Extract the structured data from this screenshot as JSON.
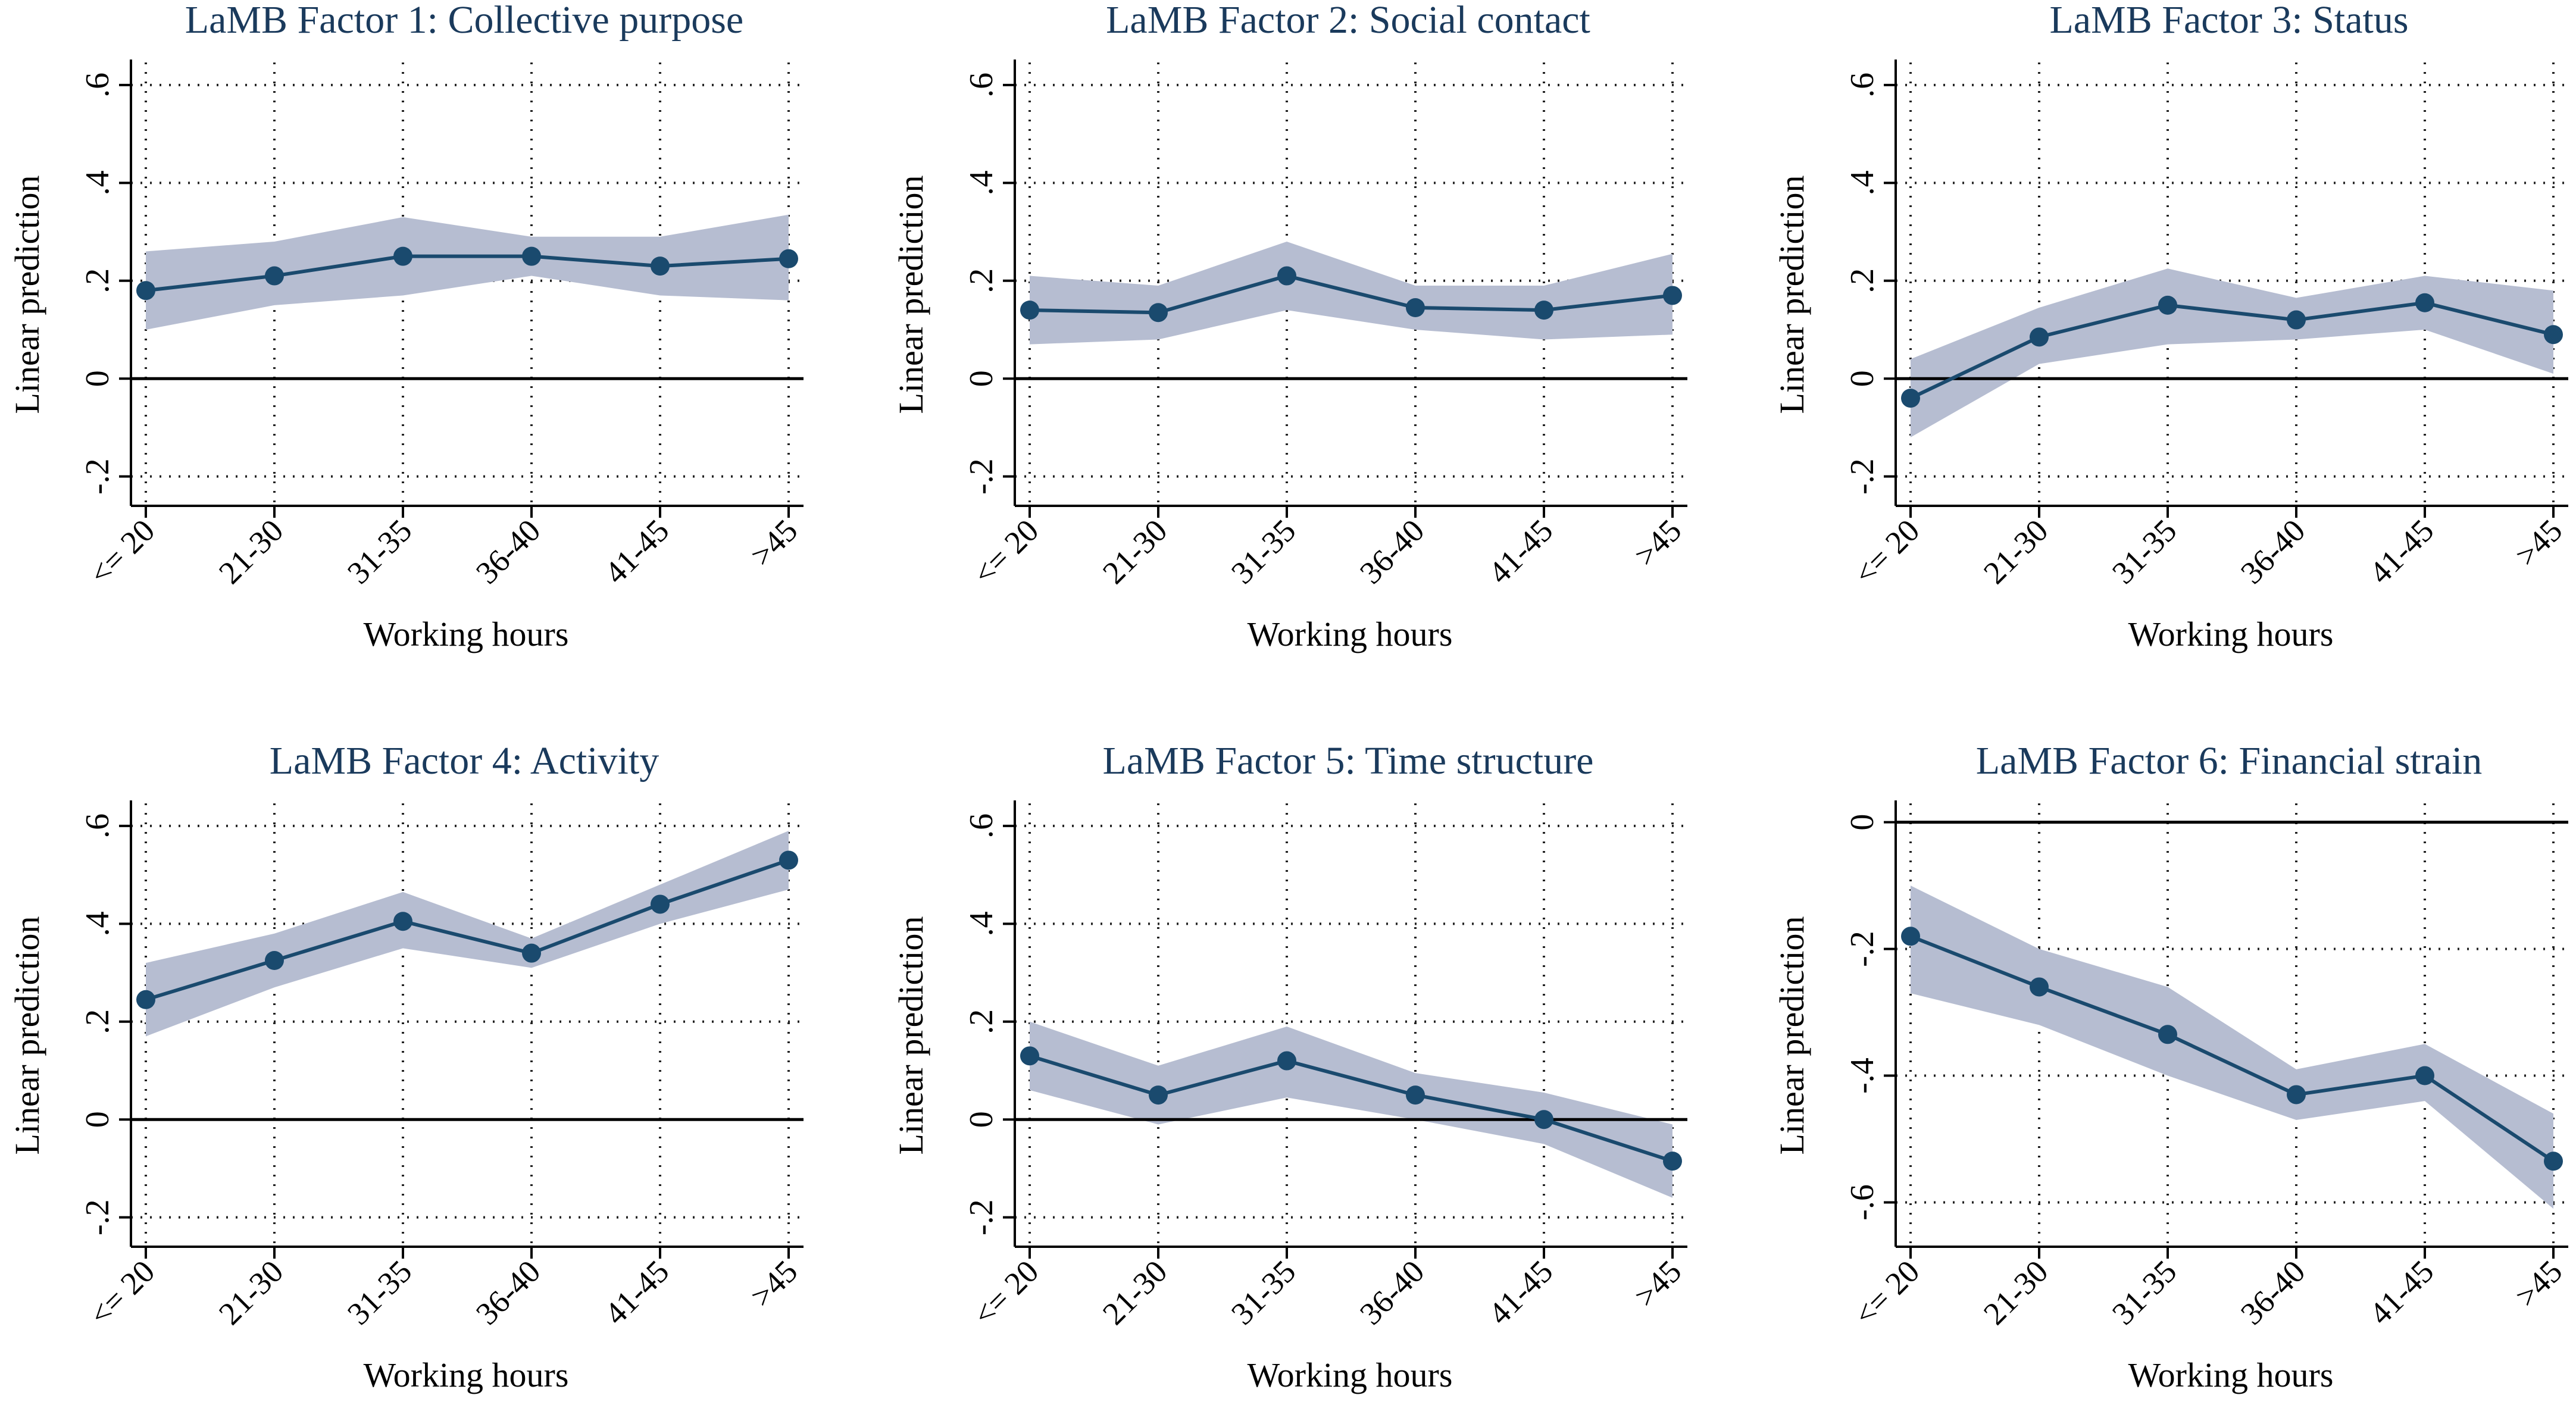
{
  "chart_data": [
    {
      "type": "line",
      "title": "LaMB Factor 1: Collective purpose",
      "xlabel": "Working hours",
      "ylabel": "Linear prediction",
      "categories": [
        "<= 20",
        "21-30",
        "31-35",
        "36-40",
        "41-45",
        ">45"
      ],
      "yticks": [
        -0.2,
        0,
        0.2,
        0.4,
        0.6
      ],
      "ytick_labels": [
        "-.2",
        "0",
        ".2",
        ".4",
        ".6"
      ],
      "ylim": [
        -0.26,
        0.64
      ],
      "reference_line": 0,
      "values": [
        0.18,
        0.21,
        0.25,
        0.25,
        0.23,
        0.245
      ],
      "ci_lower": [
        0.1,
        0.15,
        0.17,
        0.21,
        0.17,
        0.16
      ],
      "ci_upper": [
        0.26,
        0.28,
        0.33,
        0.29,
        0.29,
        0.335
      ],
      "line_color": "#1a4a6e",
      "band_color": "#b6bdd1"
    },
    {
      "type": "line",
      "title": "LaMB Factor 2: Social contact",
      "xlabel": "Working hours",
      "ylabel": "Linear prediction",
      "categories": [
        "<= 20",
        "21-30",
        "31-35",
        "36-40",
        "41-45",
        ">45"
      ],
      "yticks": [
        -0.2,
        0,
        0.2,
        0.4,
        0.6
      ],
      "ytick_labels": [
        "-.2",
        "0",
        ".2",
        ".4",
        ".6"
      ],
      "ylim": [
        -0.26,
        0.64
      ],
      "reference_line": 0,
      "values": [
        0.14,
        0.135,
        0.21,
        0.145,
        0.14,
        0.17
      ],
      "ci_lower": [
        0.07,
        0.08,
        0.14,
        0.1,
        0.08,
        0.09
      ],
      "ci_upper": [
        0.21,
        0.19,
        0.28,
        0.19,
        0.19,
        0.255
      ],
      "line_color": "#1a4a6e",
      "band_color": "#b6bdd1"
    },
    {
      "type": "line",
      "title": "LaMB Factor 3: Status",
      "xlabel": "Working hours",
      "ylabel": "Linear prediction",
      "categories": [
        "<= 20",
        "21-30",
        "31-35",
        "36-40",
        "41-45",
        ">45"
      ],
      "yticks": [
        -0.2,
        0,
        0.2,
        0.4,
        0.6
      ],
      "ytick_labels": [
        "-.2",
        "0",
        ".2",
        ".4",
        ".6"
      ],
      "ylim": [
        -0.26,
        0.64
      ],
      "reference_line": 0,
      "values": [
        -0.04,
        0.085,
        0.15,
        0.12,
        0.155,
        0.09
      ],
      "ci_lower": [
        -0.12,
        0.03,
        0.07,
        0.08,
        0.1,
        0.01
      ],
      "ci_upper": [
        0.04,
        0.145,
        0.225,
        0.165,
        0.21,
        0.18
      ],
      "line_color": "#1a4a6e",
      "band_color": "#b6bdd1"
    },
    {
      "type": "line",
      "title": "LaMB Factor 4: Activity",
      "xlabel": "Working hours",
      "ylabel": "Linear prediction",
      "categories": [
        "<= 20",
        "21-30",
        "31-35",
        "36-40",
        "41-45",
        ">45"
      ],
      "yticks": [
        -0.2,
        0,
        0.2,
        0.4,
        0.6
      ],
      "ytick_labels": [
        "-.2",
        "0",
        ".2",
        ".4",
        ".6"
      ],
      "ylim": [
        -0.26,
        0.64
      ],
      "reference_line": 0,
      "values": [
        0.245,
        0.325,
        0.405,
        0.34,
        0.44,
        0.53
      ],
      "ci_lower": [
        0.17,
        0.27,
        0.35,
        0.31,
        0.4,
        0.47
      ],
      "ci_upper": [
        0.32,
        0.38,
        0.465,
        0.37,
        0.48,
        0.59
      ],
      "line_color": "#1a4a6e",
      "band_color": "#b6bdd1"
    },
    {
      "type": "line",
      "title": "LaMB Factor 5: Time structure",
      "xlabel": "Working hours",
      "ylabel": "Linear prediction",
      "categories": [
        "<= 20",
        "21-30",
        "31-35",
        "36-40",
        "41-45",
        ">45"
      ],
      "yticks": [
        -0.2,
        0,
        0.2,
        0.4,
        0.6
      ],
      "ytick_labels": [
        "-.2",
        "0",
        ".2",
        ".4",
        ".6"
      ],
      "ylim": [
        -0.26,
        0.64
      ],
      "reference_line": 0,
      "values": [
        0.13,
        0.05,
        0.12,
        0.05,
        0.0,
        -0.085
      ],
      "ci_lower": [
        0.06,
        -0.01,
        0.045,
        0.0,
        -0.05,
        -0.16
      ],
      "ci_upper": [
        0.2,
        0.11,
        0.19,
        0.095,
        0.055,
        -0.01
      ],
      "line_color": "#1a4a6e",
      "band_color": "#b6bdd1"
    },
    {
      "type": "line",
      "title": "LaMB Factor 6: Financial strain",
      "xlabel": "Working hours",
      "ylabel": "Linear prediction",
      "categories": [
        "<= 20",
        "21-30",
        "31-35",
        "36-40",
        "41-45",
        ">45"
      ],
      "yticks": [
        -0.6,
        -0.4,
        -0.2,
        0
      ],
      "ytick_labels": [
        "-.6",
        "-.4",
        "-.2",
        "0"
      ],
      "ylim": [
        -0.67,
        0.025
      ],
      "reference_line": 0,
      "values": [
        -0.18,
        -0.26,
        -0.335,
        -0.43,
        -0.4,
        -0.535
      ],
      "ci_lower": [
        -0.27,
        -0.32,
        -0.4,
        -0.47,
        -0.44,
        -0.61
      ],
      "ci_upper": [
        -0.1,
        -0.2,
        -0.26,
        -0.39,
        -0.35,
        -0.46
      ],
      "line_color": "#1a4a6e",
      "band_color": "#b6bdd1"
    }
  ]
}
